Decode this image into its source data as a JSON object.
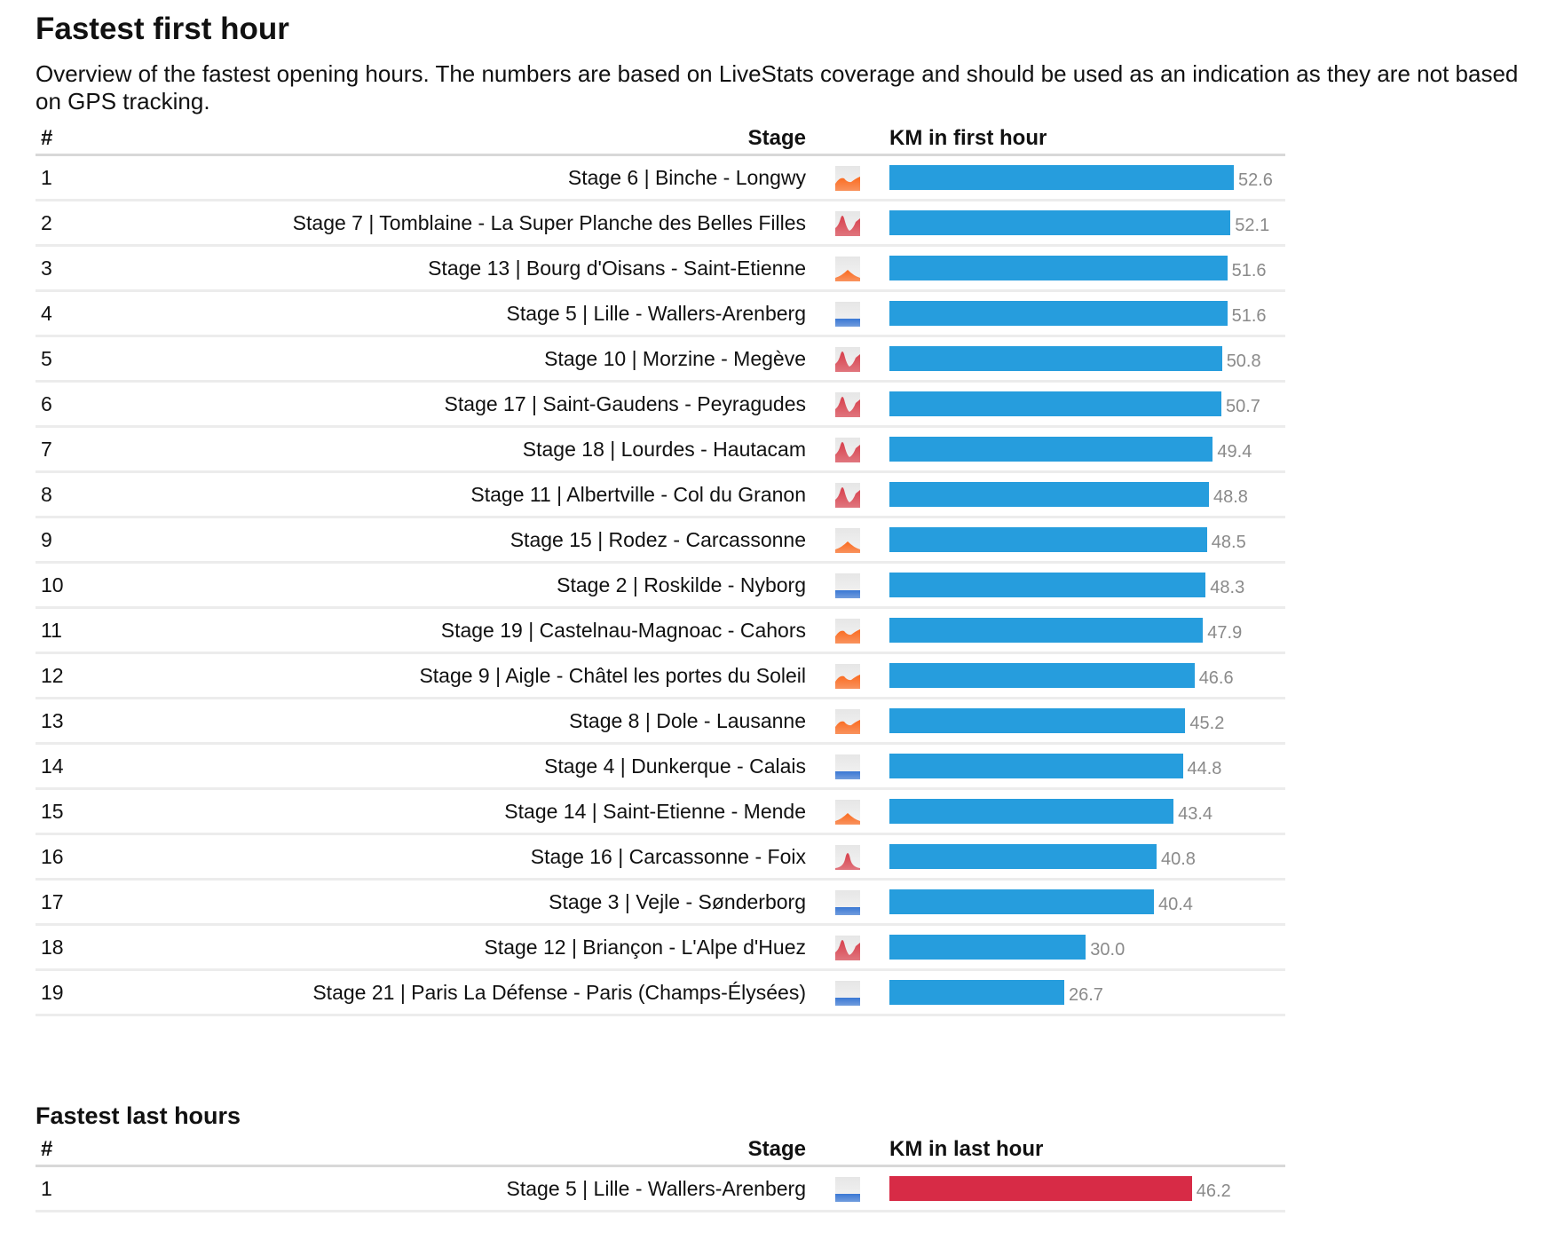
{
  "page": {
    "title": "Fastest first hour",
    "intro_line1": "Overview of the fastest opening hours. The numbers are based on LiveStats coverage and should be used as an indication as they are not",
    "intro_line2": "based on GPS tracking."
  },
  "colors": {
    "first_hour_bar": "#269ddd",
    "last_hour_bar": "#d72b46",
    "value_text": "#8a8a8a",
    "profile_flat": "#3a78d4",
    "profile_hilly": "#fb6a1e",
    "profile_mountain": "#d8404c"
  },
  "profile_types": {
    "flat": "flat-profile-icon",
    "hilly": "hilly-profile-icon",
    "hilly-summit": "hilly-summit-profile-icon",
    "mountain": "mountain-profile-icon",
    "mountain-summit": "mountain-summit-profile-icon"
  },
  "first_hour": {
    "headers": {
      "rank": "#",
      "stage": "Stage",
      "metric": "KM in first hour"
    },
    "rows": [
      {
        "rank": "1",
        "stage": "Stage 6 | Binche - Longwy",
        "profile": "hilly",
        "value": "52.6"
      },
      {
        "rank": "2",
        "stage": "Stage 7 | Tomblaine - La Super Planche des Belles Filles",
        "profile": "mountain-summit",
        "value": "52.1"
      },
      {
        "rank": "3",
        "stage": "Stage 13 | Bourg d'Oisans - Saint-Etienne",
        "profile": "hilly-summit",
        "value": "51.6"
      },
      {
        "rank": "4",
        "stage": "Stage 5 | Lille - Wallers-Arenberg",
        "profile": "flat",
        "value": "51.6"
      },
      {
        "rank": "5",
        "stage": "Stage 10 | Morzine - Megève",
        "profile": "mountain-summit",
        "value": "50.8"
      },
      {
        "rank": "6",
        "stage": "Stage 17 | Saint-Gaudens - Peyragudes",
        "profile": "mountain-summit",
        "value": "50.7"
      },
      {
        "rank": "7",
        "stage": "Stage 18 | Lourdes - Hautacam",
        "profile": "mountain-summit",
        "value": "49.4"
      },
      {
        "rank": "8",
        "stage": "Stage 11 | Albertville - Col du Granon",
        "profile": "mountain-summit",
        "value": "48.8"
      },
      {
        "rank": "9",
        "stage": "Stage 15 | Rodez - Carcassonne",
        "profile": "hilly-summit",
        "value": "48.5"
      },
      {
        "rank": "10",
        "stage": "Stage 2 | Roskilde - Nyborg",
        "profile": "flat",
        "value": "48.3"
      },
      {
        "rank": "11",
        "stage": "Stage 19 | Castelnau-Magnoac - Cahors",
        "profile": "hilly",
        "value": "47.9"
      },
      {
        "rank": "12",
        "stage": "Stage 9 | Aigle - Châtel les portes du Soleil",
        "profile": "hilly",
        "value": "46.6"
      },
      {
        "rank": "13",
        "stage": "Stage 8 | Dole - Lausanne",
        "profile": "hilly",
        "value": "45.2"
      },
      {
        "rank": "14",
        "stage": "Stage 4 | Dunkerque - Calais",
        "profile": "flat",
        "value": "44.8"
      },
      {
        "rank": "15",
        "stage": "Stage 14 | Saint-Etienne - Mende",
        "profile": "hilly-summit",
        "value": "43.4"
      },
      {
        "rank": "16",
        "stage": "Stage 16 | Carcassonne - Foix",
        "profile": "mountain",
        "value": "40.8"
      },
      {
        "rank": "17",
        "stage": "Stage 3 | Vejle - Sønderborg",
        "profile": "flat",
        "value": "40.4"
      },
      {
        "rank": "18",
        "stage": "Stage 12 | Briançon - L'Alpe d'Huez",
        "profile": "mountain-summit",
        "value": "30.0"
      },
      {
        "rank": "19",
        "stage": "Stage 21 | Paris La Défense - Paris (Champs-Élysées)",
        "profile": "flat",
        "value": "26.7"
      }
    ]
  },
  "last_hours": {
    "title": "Fastest last hours",
    "headers": {
      "rank": "#",
      "stage": "Stage",
      "metric": "KM in last hour"
    },
    "rows": [
      {
        "rank": "1",
        "stage": "Stage 5 | Lille - Wallers-Arenberg",
        "profile": "flat",
        "value": "46.2"
      }
    ]
  },
  "chart_data": [
    {
      "type": "bar",
      "orientation": "horizontal",
      "title": "Fastest first hour",
      "xlabel": "KM in first hour",
      "ylabel": "Stage",
      "categories": [
        "Stage 6 | Binche - Longwy",
        "Stage 7 | Tomblaine - La Super Planche des Belles Filles",
        "Stage 13 | Bourg d'Oisans - Saint-Etienne",
        "Stage 5 | Lille - Wallers-Arenberg",
        "Stage 10 | Morzine - Megève",
        "Stage 17 | Saint-Gaudens - Peyragudes",
        "Stage 18 | Lourdes - Hautacam",
        "Stage 11 | Albertville - Col du Granon",
        "Stage 15 | Rodez - Carcassonne",
        "Stage 2 | Roskilde - Nyborg",
        "Stage 19 | Castelnau-Magnoac - Cahors",
        "Stage 9 | Aigle - Châtel les portes du Soleil",
        "Stage 8 | Dole - Lausanne",
        "Stage 4 | Dunkerque - Calais",
        "Stage 14 | Saint-Etienne - Mende",
        "Stage 16 | Carcassonne - Foix",
        "Stage 3 | Vejle - Sønderborg",
        "Stage 12 | Briançon - L'Alpe d'Huez",
        "Stage 21 | Paris La Défense - Paris (Champs-Élysées)"
      ],
      "values": [
        52.6,
        52.1,
        51.6,
        51.6,
        50.8,
        50.7,
        49.4,
        48.8,
        48.5,
        48.3,
        47.9,
        46.6,
        45.2,
        44.8,
        43.4,
        40.8,
        40.4,
        30.0,
        26.7
      ],
      "xlim": [
        0,
        52.6
      ],
      "grid": false,
      "legend": "none"
    },
    {
      "type": "bar",
      "orientation": "horizontal",
      "title": "Fastest last hours",
      "xlabel": "KM in last hour",
      "ylabel": "Stage",
      "categories": [
        "Stage 5 | Lille - Wallers-Arenberg"
      ],
      "values": [
        46.2
      ],
      "xlim": [
        0,
        46.2
      ],
      "grid": false,
      "legend": "none"
    }
  ]
}
